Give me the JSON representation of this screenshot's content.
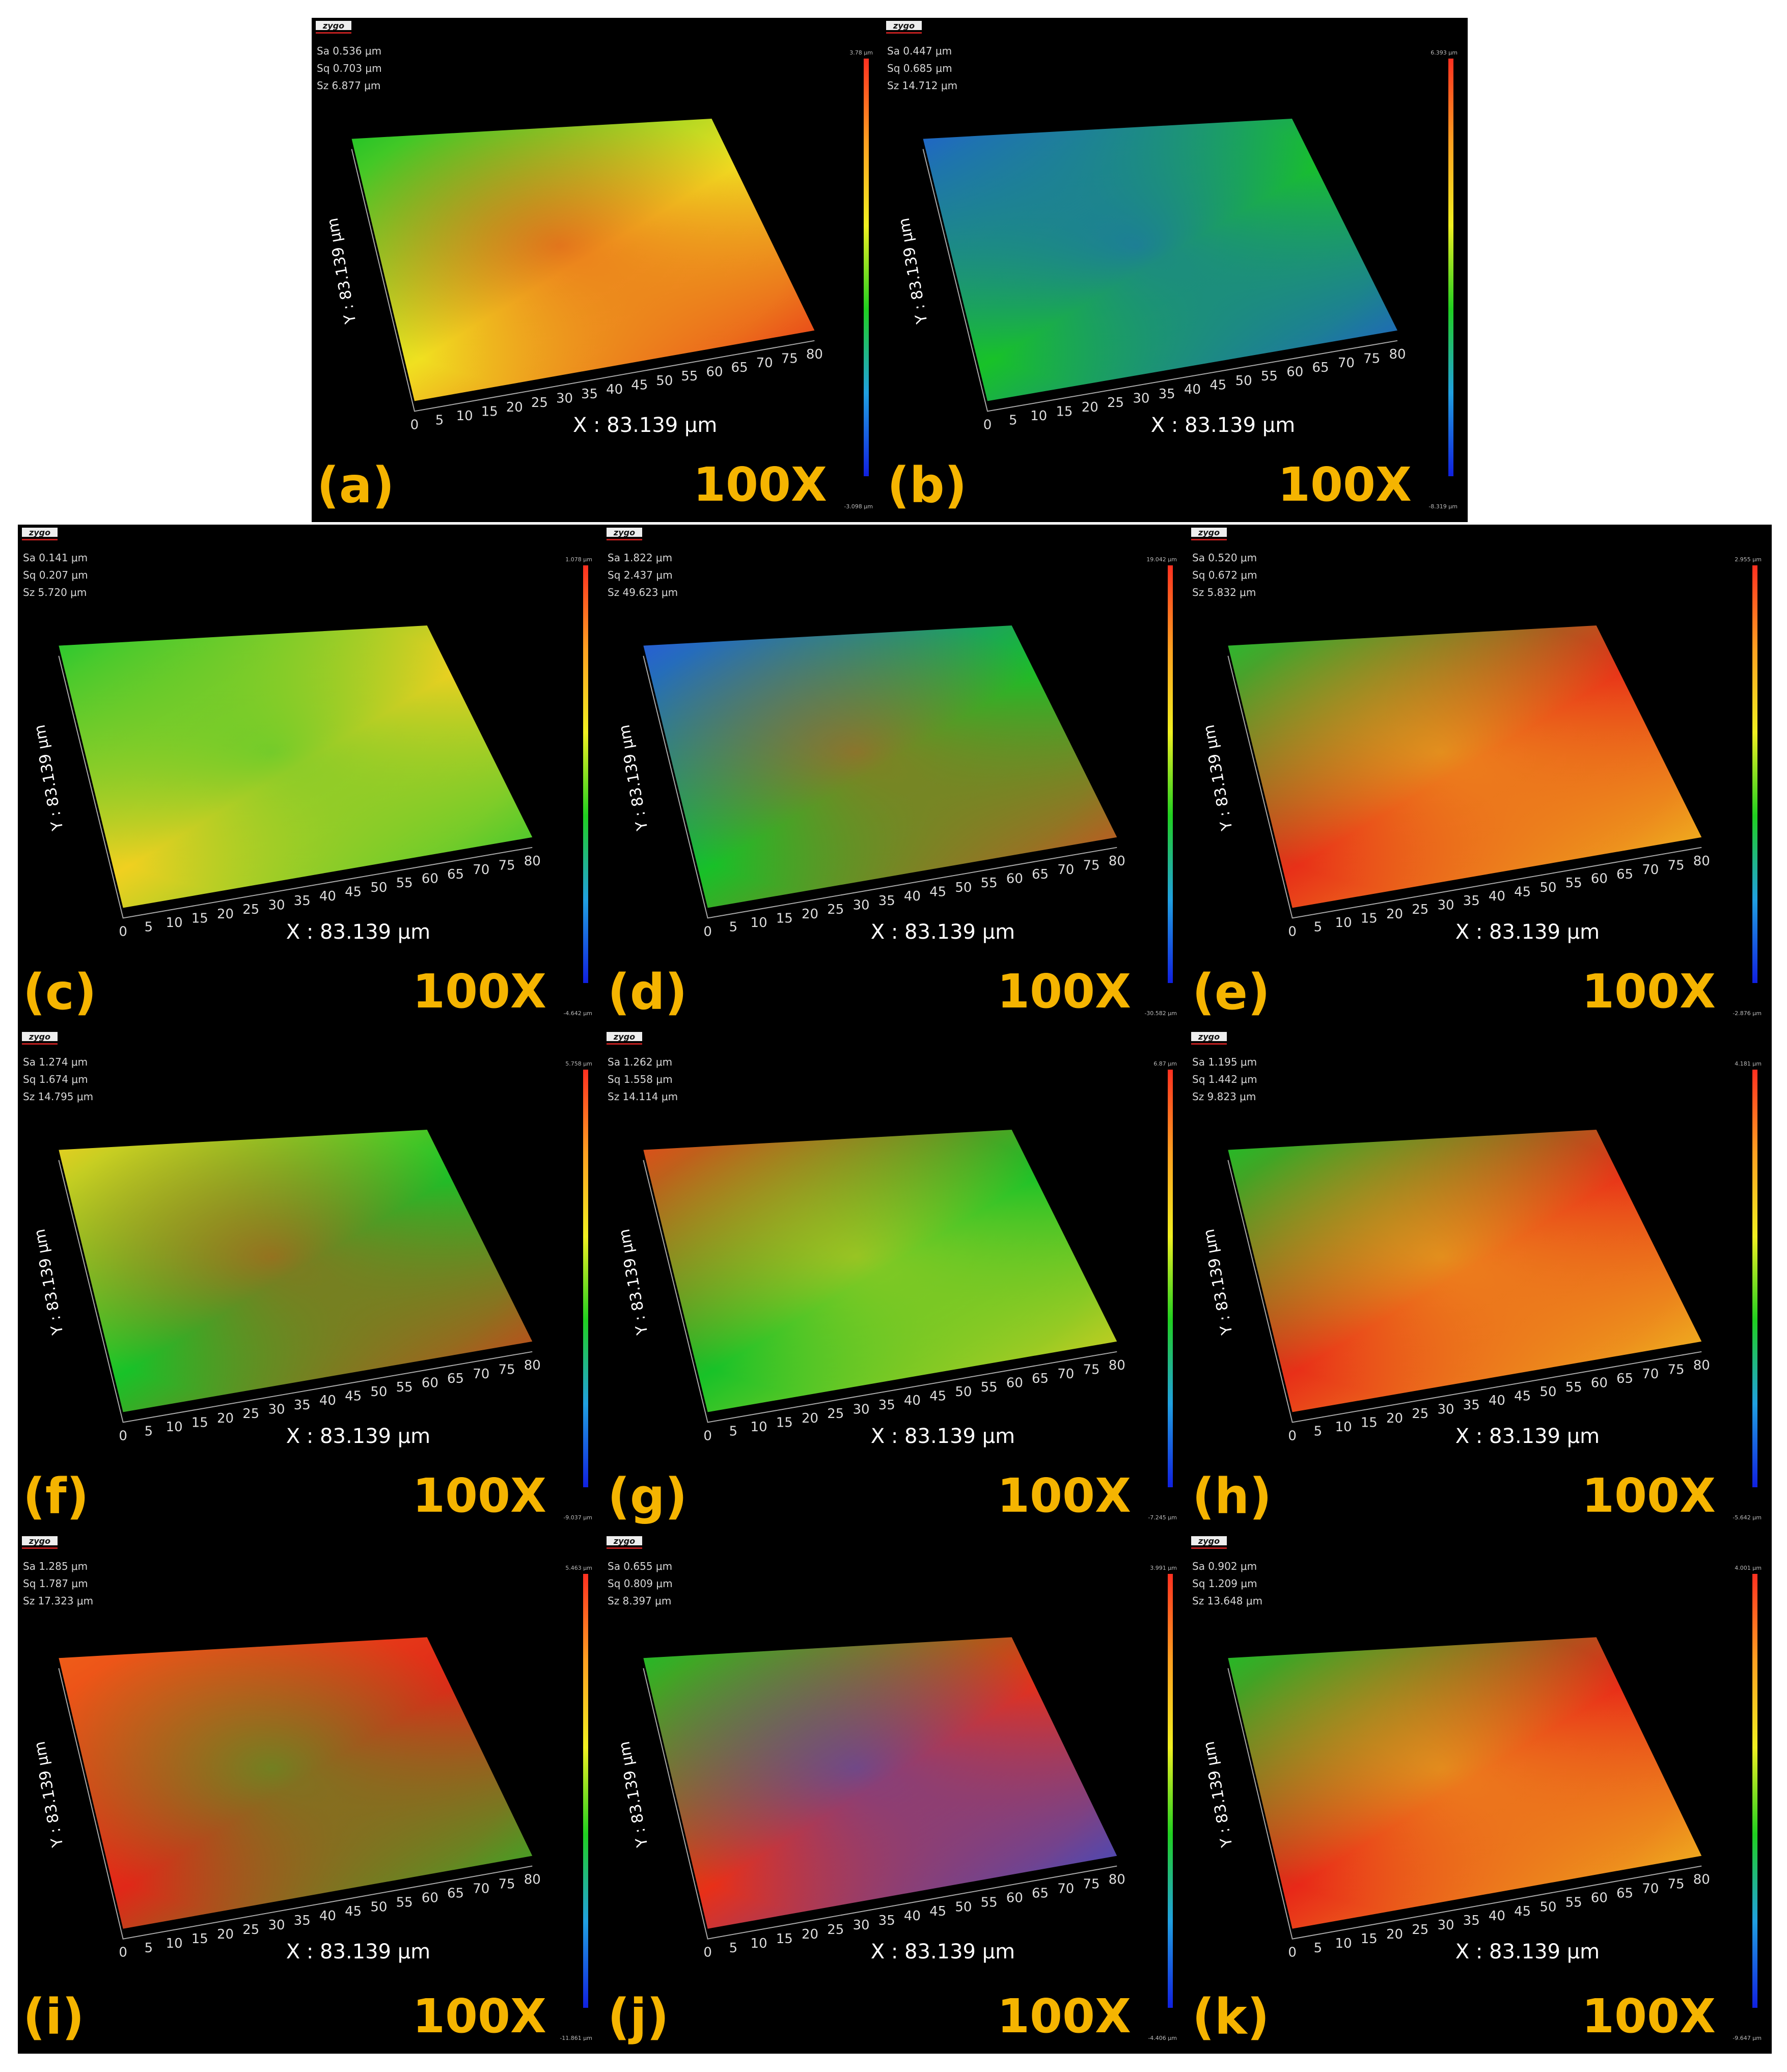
{
  "panels": [
    {
      "letter": "(a)",
      "mag": "100X",
      "sa": "Sa 0.536 μm",
      "sq": "Sq 0.703 μm",
      "sz": "Sz 6.877 μm",
      "cmax": "3.78 μm",
      "cmin": "-3.098 μm",
      "x_axis": "X : 83.139 μm",
      "y_axis": "Y : 83.139 μm"
    },
    {
      "letter": "(b)",
      "mag": "100X",
      "sa": "Sa 0.447  μm",
      "sq": "Sq 0.685  μm",
      "sz": "Sz 14.712 μm",
      "cmax": "6.393 μm",
      "cmin": "-8.319 μm",
      "x_axis": "X : 83.139 μm",
      "y_axis": "Y : 83.139 μm"
    },
    {
      "letter": "(c)",
      "mag": "100X",
      "sa": "Sa 0.141 μm",
      "sq": "Sq 0.207 μm",
      "sz": "Sz 5.720 μm",
      "cmax": "1.078 μm",
      "cmin": "-4.642 μm",
      "x_axis": "X : 83.139 μm",
      "y_axis": "Y : 83.139 μm"
    },
    {
      "letter": "(d)",
      "mag": "100X",
      "sa": "Sa 1.822  μm",
      "sq": "Sq 2.437  μm",
      "sz": "Sz 49.623 μm",
      "cmax": "19.042 μm",
      "cmin": "-30.582 μm",
      "x_axis": "X : 83.139 μm",
      "y_axis": "Y : 83.139 μm"
    },
    {
      "letter": "(e)",
      "mag": "100X",
      "sa": "Sa 0.520 μm",
      "sq": "Sq 0.672 μm",
      "sz": "Sz 5.832 μm",
      "cmax": "2.955 μm",
      "cmin": "-2.876 μm",
      "x_axis": "X : 83.139 μm",
      "y_axis": "Y : 83.139 μm"
    },
    {
      "letter": "(f)",
      "mag": "100X",
      "sa": "Sa 1.274  μm",
      "sq": "Sq 1.674  μm",
      "sz": "Sz 14.795 μm",
      "cmax": "5.758 μm",
      "cmin": "-9.037 μm",
      "x_axis": "X : 83.139 μm",
      "y_axis": "Y : 83.139 μm"
    },
    {
      "letter": "(g)",
      "mag": "100X",
      "sa": "Sa 1.262  μm",
      "sq": "Sq 1.558  μm",
      "sz": "Sz 14.114 μm",
      "cmax": "6.87 μm",
      "cmin": "-7.245 μm",
      "x_axis": "X : 83.139 μm",
      "y_axis": "Y : 83.139 μm"
    },
    {
      "letter": "(h)",
      "mag": "100X",
      "sa": "Sa 1.195 μm",
      "sq": "Sq 1.442 μm",
      "sz": "Sz 9.823 μm",
      "cmax": "4.181 μm",
      "cmin": "-5.642 μm",
      "x_axis": "X : 83.139 μm",
      "y_axis": "Y : 83.139 μm"
    },
    {
      "letter": "(i)",
      "mag": "100X",
      "sa": "Sa 1.285  μm",
      "sq": "Sq 1.787  μm",
      "sz": "Sz 17.323 μm",
      "cmax": "5.463 μm",
      "cmin": "-11.861 μm",
      "x_axis": "X : 83.139 μm",
      "y_axis": "Y : 83.139 μm"
    },
    {
      "letter": "(j)",
      "mag": "100X",
      "sa": "Sa 0.655 μm",
      "sq": "Sq 0.809 μm",
      "sz": "Sz 8.397 μm",
      "cmax": "3.991 μm",
      "cmin": "-4.406 μm",
      "x_axis": "X : 83.139 μm",
      "y_axis": "Y : 83.139 μm"
    },
    {
      "letter": "(k)",
      "mag": "100X",
      "sa": "Sa 0.902  μm",
      "sq": "Sq 1.209  μm",
      "sz": "Sz 13.648 μm",
      "cmax": "4.001 μm",
      "cmin": "-9.647 μm",
      "x_axis": "X : 83.139 μm",
      "y_axis": "Y : 83.139 μm"
    }
  ],
  "logo_text": "zygo",
  "x_ticks": [
    "0",
    "5",
    "10",
    "15",
    "20",
    "25",
    "30",
    "35",
    "40",
    "45",
    "50",
    "55",
    "60",
    "65",
    "70",
    "75",
    "80"
  ],
  "colors": {
    "highlight": "#f5b400",
    "surface_high": "#e8201a",
    "surface_mid": "#17c427",
    "surface_low": "#1030d0"
  }
}
